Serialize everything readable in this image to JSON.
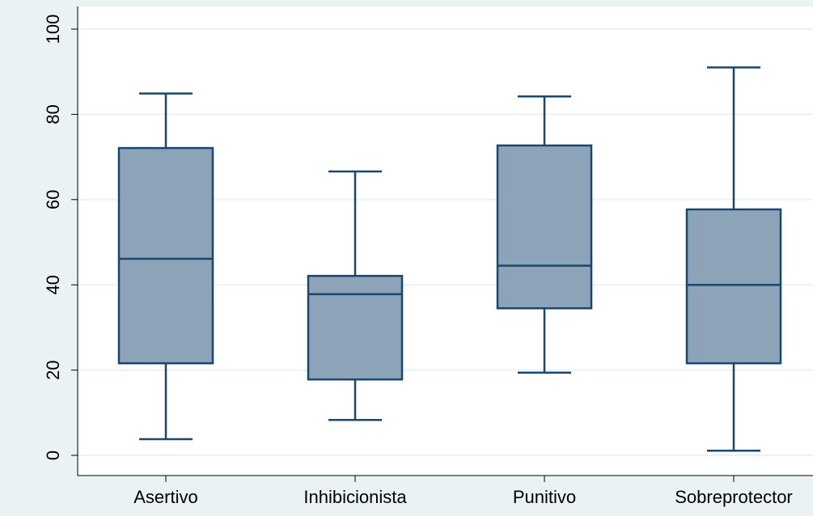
{
  "chart_data": {
    "type": "boxplot",
    "title": "",
    "xlabel": "",
    "ylabel": "",
    "categories": [
      "Asertivo",
      "Inhibicionista",
      "Punitivo",
      "Sobreprotector"
    ],
    "boxes": [
      {
        "category": "Asertivo",
        "whisker_low": 3.8,
        "q1": 21.6,
        "median": 46.1,
        "q3": 72.1,
        "whisker_high": 84.9
      },
      {
        "category": "Inhibicionista",
        "whisker_low": 8.3,
        "q1": 17.8,
        "median": 37.8,
        "q3": 42.1,
        "whisker_high": 66.6
      },
      {
        "category": "Punitivo",
        "whisker_low": 19.4,
        "q1": 34.5,
        "median": 44.5,
        "q3": 72.7,
        "whisker_high": 84.2
      },
      {
        "category": "Sobreprotector",
        "whisker_low": 1.1,
        "q1": 21.6,
        "median": 40.0,
        "q3": 57.7,
        "whisker_high": 91.0
      }
    ],
    "ylim": [
      0,
      100
    ],
    "yticks": [
      0,
      20,
      40,
      60,
      80,
      100
    ],
    "grid": true,
    "legend": "none",
    "colors": {
      "box_fill": "#8da3b8",
      "box_stroke": "#1a476f",
      "gridline": "#eaf2f3",
      "plot_background": "#ffffff",
      "outer_background": "#eaf2f3"
    }
  }
}
